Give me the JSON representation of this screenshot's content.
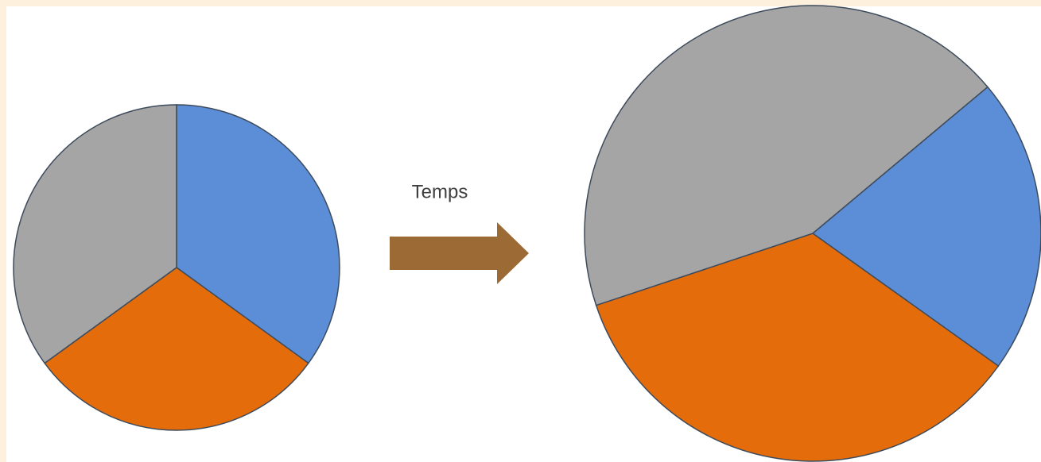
{
  "chart_data": [
    {
      "type": "pie",
      "values": [
        35,
        30,
        35
      ],
      "colors": [
        "#5b8ed6",
        "#e46c0a",
        "#a5a5a5"
      ]
    },
    {
      "type": "pie",
      "values": [
        21,
        35,
        44
      ],
      "colors": [
        "#5b8ed6",
        "#e46c0a",
        "#a5a5a5"
      ]
    }
  ],
  "annotation": "Temps"
}
